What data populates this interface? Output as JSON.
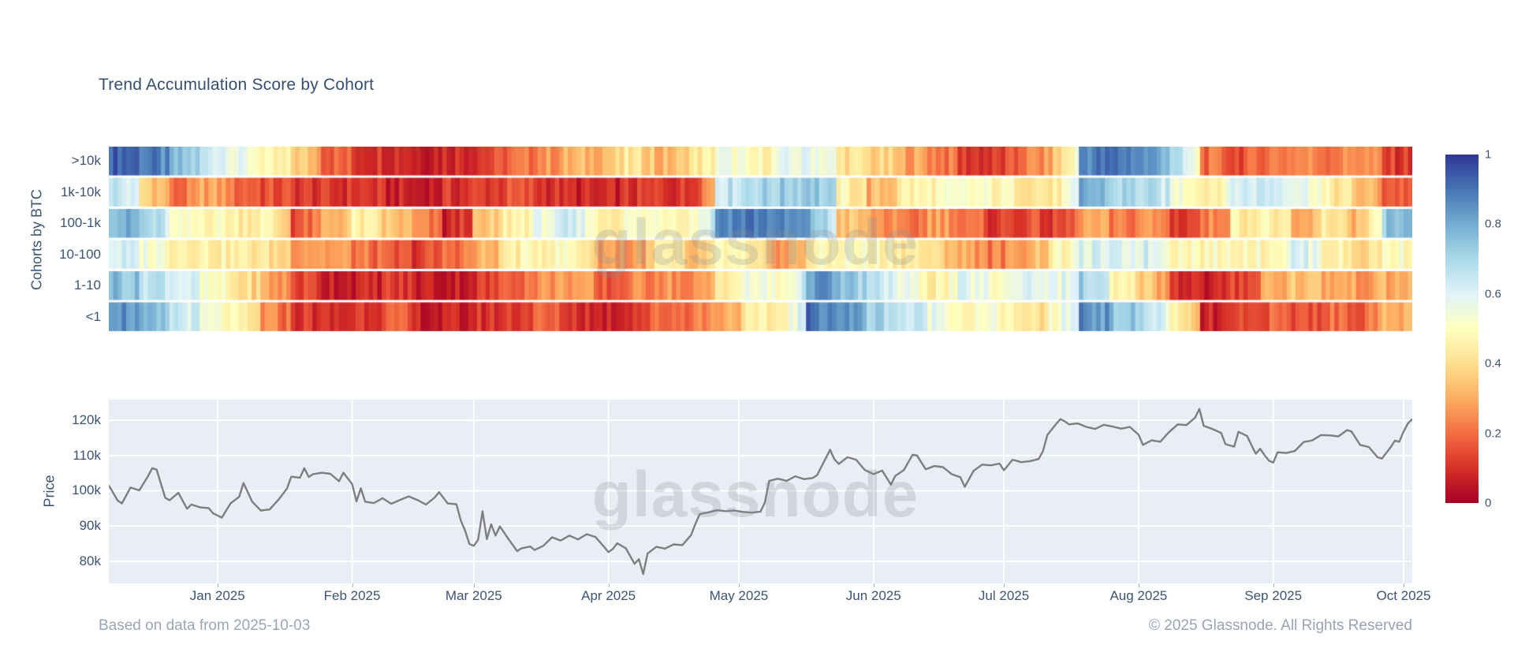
{
  "header": {
    "title": "Trend Accumulation Score by Cohort"
  },
  "watermark": {
    "text": "glassnode"
  },
  "footer": {
    "left": "Based on data from 2025-10-03",
    "right": "© 2025 Glassnode. All Rights Reserved"
  },
  "colors": {
    "title_text": "#36506e",
    "axis_text": "#3c5472",
    "footer_text": "#9aa5b5",
    "plot_background": "#e9edf5",
    "gridline": "#ffffff",
    "price_line": "#7e7e7e",
    "colorscale_low": "#a50026",
    "colorscale_mid": "#ffffbf",
    "colorscale_high": "#313695"
  },
  "chart_data": [
    {
      "type": "heatmap",
      "title": "Trend Accumulation Score by Cohort",
      "ylabel": "Cohorts by BTC",
      "zmin": 0,
      "zmax": 1,
      "colorscale": "RdYlBu",
      "colorbar_ticks": [
        {
          "label": "1",
          "value": 1.0
        },
        {
          "label": "0.8",
          "value": 0.8
        },
        {
          "label": "0.6",
          "value": 0.6
        },
        {
          "label": "0.4",
          "value": 0.4
        },
        {
          "label": "0.2",
          "value": 0.2
        },
        {
          "label": "0",
          "value": 0.0
        }
      ],
      "x_start": "2024-12-07",
      "x_end": "2025-10-03",
      "x_resolution": "weekly anchors (43 weeks)",
      "rows": [
        ">10k",
        "1k-10k",
        "100-1k",
        "10-100",
        "1-10",
        "<1"
      ],
      "series": [
        {
          "name": ">10k",
          "values": [
            0.95,
            0.9,
            0.75,
            0.65,
            0.57,
            0.45,
            0.38,
            0.2,
            0.12,
            0.12,
            0.08,
            0.1,
            0.12,
            0.18,
            0.25,
            0.3,
            0.33,
            0.42,
            0.3,
            0.4,
            0.55,
            0.45,
            0.55,
            0.6,
            0.42,
            0.38,
            0.3,
            0.25,
            0.12,
            0.1,
            0.22,
            0.3,
            0.88,
            0.9,
            0.85,
            0.7,
            0.2,
            0.15,
            0.22,
            0.25,
            0.22,
            0.28,
            0.12
          ]
        },
        {
          "name": "1k-10k",
          "values": [
            0.68,
            0.4,
            0.18,
            0.3,
            0.2,
            0.15,
            0.12,
            0.1,
            0.12,
            0.07,
            0.05,
            0.1,
            0.12,
            0.15,
            0.12,
            0.08,
            0.06,
            0.1,
            0.12,
            0.1,
            0.65,
            0.7,
            0.72,
            0.78,
            0.48,
            0.3,
            0.45,
            0.48,
            0.5,
            0.48,
            0.45,
            0.4,
            0.8,
            0.7,
            0.68,
            0.55,
            0.45,
            0.62,
            0.65,
            0.6,
            0.45,
            0.35,
            0.18
          ]
        },
        {
          "name": "100-1k",
          "values": [
            0.8,
            0.72,
            0.48,
            0.5,
            0.45,
            0.48,
            0.15,
            0.3,
            0.45,
            0.35,
            0.25,
            0.05,
            0.3,
            0.45,
            0.55,
            0.62,
            0.45,
            0.5,
            0.52,
            0.48,
            0.88,
            0.9,
            0.85,
            0.8,
            0.35,
            0.28,
            0.18,
            0.3,
            0.2,
            0.12,
            0.15,
            0.1,
            0.3,
            0.2,
            0.28,
            0.12,
            0.2,
            0.45,
            0.48,
            0.25,
            0.45,
            0.3,
            0.75
          ]
        },
        {
          "name": "10-100",
          "values": [
            0.62,
            0.55,
            0.48,
            0.46,
            0.44,
            0.42,
            0.3,
            0.28,
            0.22,
            0.15,
            0.12,
            0.2,
            0.28,
            0.45,
            0.48,
            0.5,
            0.3,
            0.25,
            0.45,
            0.3,
            0.48,
            0.4,
            0.25,
            0.45,
            0.5,
            0.48,
            0.45,
            0.38,
            0.3,
            0.22,
            0.3,
            0.45,
            0.6,
            0.58,
            0.62,
            0.5,
            0.48,
            0.5,
            0.48,
            0.62,
            0.48,
            0.38,
            0.5
          ]
        },
        {
          "name": "1-10",
          "values": [
            0.78,
            0.68,
            0.64,
            0.5,
            0.42,
            0.3,
            0.15,
            0.08,
            0.06,
            0.12,
            0.07,
            0.06,
            0.1,
            0.2,
            0.25,
            0.3,
            0.15,
            0.22,
            0.28,
            0.2,
            0.45,
            0.55,
            0.48,
            0.85,
            0.75,
            0.65,
            0.55,
            0.45,
            0.58,
            0.5,
            0.62,
            0.55,
            0.72,
            0.45,
            0.38,
            0.12,
            0.05,
            0.12,
            0.3,
            0.35,
            0.3,
            0.28,
            0.3
          ]
        },
        {
          "name": "<1",
          "values": [
            0.88,
            0.75,
            0.66,
            0.52,
            0.45,
            0.25,
            0.12,
            0.08,
            0.12,
            0.18,
            0.07,
            0.05,
            0.1,
            0.12,
            0.18,
            0.12,
            0.07,
            0.12,
            0.2,
            0.22,
            0.3,
            0.42,
            0.45,
            0.9,
            0.85,
            0.72,
            0.65,
            0.58,
            0.48,
            0.52,
            0.38,
            0.48,
            0.88,
            0.75,
            0.68,
            0.45,
            0.06,
            0.1,
            0.18,
            0.15,
            0.2,
            0.18,
            0.3
          ]
        }
      ]
    },
    {
      "type": "line",
      "ylabel": "Price",
      "y_unit": "USD (thousands)",
      "ylim": [
        73.7,
        125.8
      ],
      "grid": true,
      "y_ticks": [
        {
          "label": "120k",
          "value": 120
        },
        {
          "label": "110k",
          "value": 110
        },
        {
          "label": "100k",
          "value": 100
        },
        {
          "label": "90k",
          "value": 90
        },
        {
          "label": "80k",
          "value": 80
        }
      ],
      "x_unit": "days since 2024-12-07",
      "x_ticks": [
        {
          "label": "Jan 2025",
          "day": 25
        },
        {
          "label": "Feb 2025",
          "day": 56
        },
        {
          "label": "Mar 2025",
          "day": 84
        },
        {
          "label": "Apr 2025",
          "day": 115
        },
        {
          "label": "May 2025",
          "day": 145
        },
        {
          "label": "Jun 2025",
          "day": 176
        },
        {
          "label": "Jul 2025",
          "day": 206
        },
        {
          "label": "Aug 2025",
          "day": 237
        },
        {
          "label": "Sep 2025",
          "day": 268
        },
        {
          "label": "Oct 2025",
          "day": 298
        }
      ],
      "points": [
        [
          0,
          101.5
        ],
        [
          2,
          97.3
        ],
        [
          3,
          96.4
        ],
        [
          5,
          100.9
        ],
        [
          7,
          100.1
        ],
        [
          9,
          104.1
        ],
        [
          10,
          106.4
        ],
        [
          11,
          106.0
        ],
        [
          13,
          98.0
        ],
        [
          14,
          97.3
        ],
        [
          16,
          99.4
        ],
        [
          18,
          94.9
        ],
        [
          19,
          96.1
        ],
        [
          21,
          95.3
        ],
        [
          23,
          95.1
        ],
        [
          24,
          93.6
        ],
        [
          26,
          92.4
        ],
        [
          28,
          96.4
        ],
        [
          30,
          98.3
        ],
        [
          31,
          102.2
        ],
        [
          33,
          96.9
        ],
        [
          35,
          94.4
        ],
        [
          37,
          94.7
        ],
        [
          39,
          97.4
        ],
        [
          41,
          100.6
        ],
        [
          42,
          104.0
        ],
        [
          44,
          103.7
        ],
        [
          45,
          106.4
        ],
        [
          46,
          103.9
        ],
        [
          47,
          104.7
        ],
        [
          49,
          105.1
        ],
        [
          51,
          104.8
        ],
        [
          53,
          102.7
        ],
        [
          54,
          105.1
        ],
        [
          56,
          101.9
        ],
        [
          57,
          97.0
        ],
        [
          58,
          100.7
        ],
        [
          59,
          96.9
        ],
        [
          61,
          96.5
        ],
        [
          63,
          97.9
        ],
        [
          65,
          96.3
        ],
        [
          67,
          97.4
        ],
        [
          69,
          98.4
        ],
        [
          71,
          97.4
        ],
        [
          73,
          96.1
        ],
        [
          75,
          98.1
        ],
        [
          76,
          99.6
        ],
        [
          78,
          96.4
        ],
        [
          80,
          96.2
        ],
        [
          81,
          91.6
        ],
        [
          82,
          88.7
        ],
        [
          83,
          84.9
        ],
        [
          84,
          84.4
        ],
        [
          85,
          86.1
        ],
        [
          86,
          94.2
        ],
        [
          87,
          86.3
        ],
        [
          88,
          90.5
        ],
        [
          89,
          87.3
        ],
        [
          90,
          89.9
        ],
        [
          92,
          86.3
        ],
        [
          94,
          82.9
        ],
        [
          95,
          83.7
        ],
        [
          97,
          84.2
        ],
        [
          98,
          83.2
        ],
        [
          100,
          84.4
        ],
        [
          102,
          86.8
        ],
        [
          104,
          85.9
        ],
        [
          106,
          87.3
        ],
        [
          108,
          86.2
        ],
        [
          110,
          87.7
        ],
        [
          112,
          86.9
        ],
        [
          114,
          84.1
        ],
        [
          115,
          82.6
        ],
        [
          116,
          83.5
        ],
        [
          117,
          85.1
        ],
        [
          119,
          83.7
        ],
        [
          121,
          79.3
        ],
        [
          122,
          80.6
        ],
        [
          123,
          76.4
        ],
        [
          124,
          82.2
        ],
        [
          126,
          84.1
        ],
        [
          128,
          83.6
        ],
        [
          130,
          84.8
        ],
        [
          132,
          84.6
        ],
        [
          134,
          87.4
        ],
        [
          135,
          90.6
        ],
        [
          136,
          93.4
        ],
        [
          138,
          93.9
        ],
        [
          140,
          94.5
        ],
        [
          142,
          94.2
        ],
        [
          144,
          94.4
        ],
        [
          146,
          94.0
        ],
        [
          148,
          93.8
        ],
        [
          150,
          94.1
        ],
        [
          151,
          96.7
        ],
        [
          152,
          102.8
        ],
        [
          154,
          103.4
        ],
        [
          156,
          102.8
        ],
        [
          158,
          104.1
        ],
        [
          160,
          103.3
        ],
        [
          162,
          103.6
        ],
        [
          163,
          104.4
        ],
        [
          165,
          109.2
        ],
        [
          166,
          111.6
        ],
        [
          167,
          108.9
        ],
        [
          168,
          107.6
        ],
        [
          170,
          109.5
        ],
        [
          172,
          108.8
        ],
        [
          174,
          105.9
        ],
        [
          176,
          104.7
        ],
        [
          178,
          105.7
        ],
        [
          180,
          101.7
        ],
        [
          181,
          104.2
        ],
        [
          183,
          105.9
        ],
        [
          185,
          110.2
        ],
        [
          186,
          110.0
        ],
        [
          188,
          106.1
        ],
        [
          190,
          107.0
        ],
        [
          192,
          106.7
        ],
        [
          194,
          104.7
        ],
        [
          196,
          103.8
        ],
        [
          197,
          101.1
        ],
        [
          199,
          105.6
        ],
        [
          201,
          107.4
        ],
        [
          203,
          107.2
        ],
        [
          205,
          107.7
        ],
        [
          206,
          105.8
        ],
        [
          208,
          108.8
        ],
        [
          210,
          108.1
        ],
        [
          212,
          108.4
        ],
        [
          214,
          109.0
        ],
        [
          215,
          111.2
        ],
        [
          216,
          115.8
        ],
        [
          218,
          118.9
        ],
        [
          219,
          120.3
        ],
        [
          220,
          119.7
        ],
        [
          221,
          118.8
        ],
        [
          223,
          119.1
        ],
        [
          225,
          118.1
        ],
        [
          227,
          117.5
        ],
        [
          229,
          118.7
        ],
        [
          231,
          118.2
        ],
        [
          233,
          117.6
        ],
        [
          235,
          118.1
        ],
        [
          237,
          115.9
        ],
        [
          238,
          113.0
        ],
        [
          240,
          114.3
        ],
        [
          242,
          113.9
        ],
        [
          244,
          116.6
        ],
        [
          246,
          118.8
        ],
        [
          248,
          118.6
        ],
        [
          250,
          120.7
        ],
        [
          251,
          123.2
        ],
        [
          252,
          118.4
        ],
        [
          254,
          117.5
        ],
        [
          256,
          116.4
        ],
        [
          257,
          113.2
        ],
        [
          259,
          112.5
        ],
        [
          260,
          116.7
        ],
        [
          262,
          115.5
        ],
        [
          263,
          112.9
        ],
        [
          264,
          110.5
        ],
        [
          265,
          111.9
        ],
        [
          266,
          110.1
        ],
        [
          267,
          108.5
        ],
        [
          268,
          108.0
        ],
        [
          269,
          110.9
        ],
        [
          271,
          110.7
        ],
        [
          273,
          111.3
        ],
        [
          275,
          113.8
        ],
        [
          277,
          114.3
        ],
        [
          279,
          115.8
        ],
        [
          281,
          115.7
        ],
        [
          283,
          115.4
        ],
        [
          285,
          117.2
        ],
        [
          286,
          116.8
        ],
        [
          288,
          113.0
        ],
        [
          290,
          112.4
        ],
        [
          292,
          109.5
        ],
        [
          293,
          109.1
        ],
        [
          295,
          112.3
        ],
        [
          296,
          114.2
        ],
        [
          297,
          113.9
        ],
        [
          298,
          116.8
        ],
        [
          299,
          119.1
        ],
        [
          300,
          120.3
        ]
      ]
    }
  ]
}
